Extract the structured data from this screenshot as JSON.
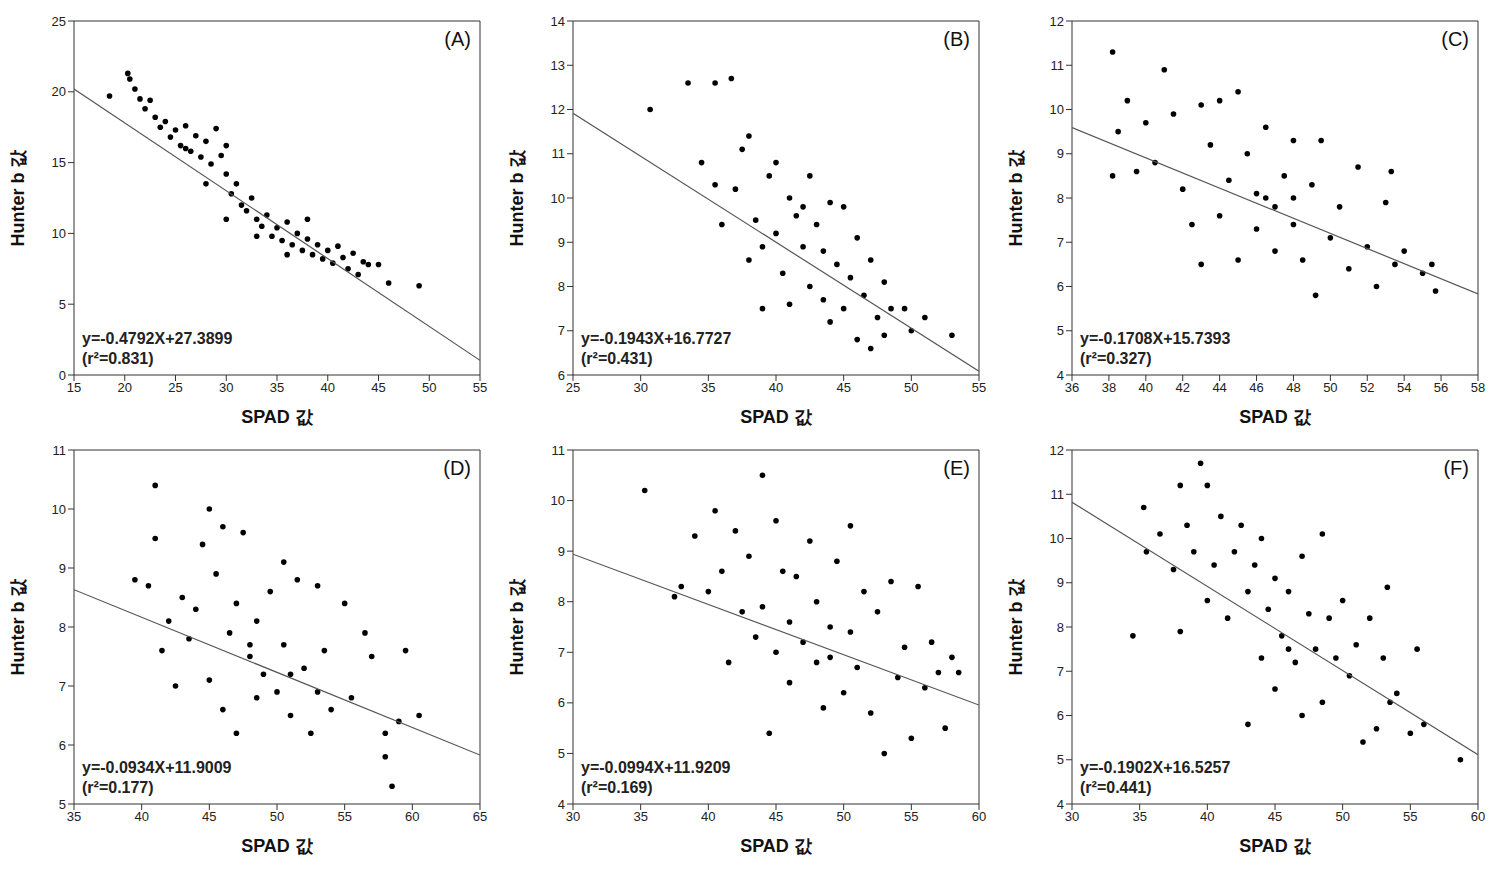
{
  "chart_data": [
    {
      "type": "scatter",
      "title": "(A)",
      "x_label": "SPAD 값",
      "y_label": "Hunter b 값",
      "annotations": [
        "y=-0.4792X+27.3899",
        "(r²=0.831)"
      ],
      "fit": {
        "slope": -0.4792,
        "intercept": 27.3899
      },
      "color": "#000000",
      "line_color": "#555555",
      "marker": "circle",
      "xlim": [
        15,
        55
      ],
      "xticks": [
        15,
        20,
        25,
        30,
        35,
        40,
        45,
        50,
        55
      ],
      "ylim": [
        0,
        25
      ],
      "yticks": [
        0,
        5,
        10,
        15,
        20,
        25
      ],
      "grid": false,
      "x": [
        18.5,
        20.3,
        20.5,
        21,
        21.5,
        22,
        22.5,
        23,
        23.5,
        24,
        24.5,
        25,
        25.5,
        26,
        26.5,
        27,
        27.5,
        28,
        28.5,
        29,
        29.5,
        30,
        30,
        30.5,
        31,
        31.5,
        32,
        32.5,
        33,
        33.5,
        34,
        34.5,
        35,
        35.5,
        36,
        36.5,
        37,
        37.5,
        38,
        38.5,
        39,
        39.5,
        40,
        40.5,
        41,
        41.5,
        42,
        42.5,
        43,
        43.5,
        44,
        45,
        46,
        49,
        26,
        28,
        33,
        36,
        38,
        30
      ],
      "values": [
        19.7,
        21.3,
        20.9,
        20.2,
        19.5,
        18.8,
        19.4,
        18.2,
        17.5,
        17.9,
        16.8,
        17.3,
        16.2,
        17.6,
        15.8,
        16.9,
        15.4,
        16.5,
        14.9,
        17.4,
        15.5,
        14.2,
        16.2,
        12.8,
        13.5,
        12,
        11.6,
        12.5,
        11,
        10.5,
        11.3,
        9.8,
        10.4,
        9.5,
        10.8,
        9.2,
        10,
        8.8,
        9.6,
        8.5,
        9.2,
        8.2,
        8.8,
        7.9,
        9.1,
        8.3,
        7.5,
        8.6,
        7.1,
        8,
        7.8,
        7.8,
        6.5,
        6.3,
        16,
        13.5,
        9.8,
        8.5,
        11,
        11
      ]
    },
    {
      "type": "scatter",
      "title": "(B)",
      "x_label": "SPAD 값",
      "y_label": "Hunter b 값",
      "annotations": [
        "y=-0.1943X+16.7727",
        "(r²=0.431)"
      ],
      "fit": {
        "slope": -0.1943,
        "intercept": 16.7727
      },
      "color": "#000000",
      "line_color": "#555555",
      "marker": "circle",
      "xlim": [
        25,
        55
      ],
      "xticks": [
        25,
        30,
        35,
        40,
        45,
        50,
        55
      ],
      "ylim": [
        6,
        14
      ],
      "yticks": [
        6,
        7,
        8,
        9,
        10,
        11,
        12,
        13,
        14
      ],
      "grid": false,
      "x": [
        30.7,
        33.5,
        35.5,
        36.7,
        34.5,
        35.5,
        36,
        37,
        37.5,
        38,
        38.5,
        38,
        39,
        39.5,
        40,
        40,
        40.5,
        41,
        41,
        41.5,
        42,
        42.5,
        42.5,
        43,
        43.5,
        43.5,
        44,
        44,
        44.5,
        45,
        45,
        45.5,
        46,
        46,
        46.5,
        47,
        47,
        47.5,
        48,
        48,
        48.5,
        49.5,
        50,
        51,
        53,
        39,
        42
      ],
      "values": [
        12,
        12.6,
        12.6,
        12.7,
        10.8,
        10.3,
        9.4,
        10.2,
        11.1,
        11.4,
        9.5,
        8.6,
        8.9,
        10.5,
        10.8,
        9.2,
        8.3,
        10,
        7.6,
        9.6,
        8.9,
        10.5,
        8,
        9.4,
        7.7,
        8.8,
        9.9,
        7.2,
        8.5,
        9.8,
        7.5,
        8.2,
        9.1,
        6.8,
        7.8,
        8.6,
        6.6,
        7.3,
        8.1,
        6.9,
        7.5,
        7.5,
        7,
        7.3,
        6.9,
        7.5,
        9.8
      ]
    },
    {
      "type": "scatter",
      "title": "(C)",
      "x_label": "SPAD 값",
      "y_label": "Hunter b 값",
      "annotations": [
        "y=-0.1708X+15.7393",
        "(r²=0.327)"
      ],
      "fit": {
        "slope": -0.1708,
        "intercept": 15.7393
      },
      "color": "#000000",
      "line_color": "#555555",
      "marker": "circle",
      "xlim": [
        36,
        58
      ],
      "xticks": [
        36,
        38,
        40,
        42,
        44,
        46,
        48,
        50,
        52,
        54,
        56,
        58
      ],
      "ylim": [
        4,
        12
      ],
      "yticks": [
        4,
        5,
        6,
        7,
        8,
        9,
        10,
        11,
        12
      ],
      "grid": false,
      "x": [
        38.2,
        38.2,
        38.5,
        39,
        39.5,
        40,
        40.5,
        41,
        41.5,
        42,
        42.5,
        43,
        43,
        43.5,
        44,
        44,
        44.5,
        45,
        45,
        45.5,
        46,
        46,
        46.5,
        47,
        47,
        47.5,
        48,
        48,
        48.5,
        49,
        49.2,
        49.5,
        50,
        50.5,
        51,
        51.5,
        52,
        52.5,
        53,
        53.3,
        53.5,
        54,
        55,
        55.5,
        55.7,
        46.5,
        48
      ],
      "values": [
        11.3,
        8.5,
        9.5,
        10.2,
        8.6,
        9.7,
        8.8,
        10.9,
        9.9,
        8.2,
        7.4,
        10.1,
        6.5,
        9.2,
        10.2,
        7.6,
        8.4,
        10.4,
        6.6,
        9,
        8.1,
        7.3,
        9.6,
        7.8,
        6.8,
        8.5,
        9.3,
        7.4,
        6.6,
        8.3,
        5.8,
        9.3,
        7.1,
        7.8,
        6.4,
        8.7,
        6.9,
        6,
        7.9,
        8.6,
        6.5,
        6.8,
        6.3,
        6.5,
        5.9,
        8,
        8
      ]
    },
    {
      "type": "scatter",
      "title": "(D)",
      "x_label": "SPAD 값",
      "y_label": "Hunter b 값",
      "annotations": [
        "y=-0.0934X+11.9009",
        "(r²=0.177)"
      ],
      "fit": {
        "slope": -0.0934,
        "intercept": 11.9009
      },
      "color": "#000000",
      "line_color": "#555555",
      "marker": "circle",
      "xlim": [
        35,
        65
      ],
      "xticks": [
        35,
        40,
        45,
        50,
        55,
        60,
        65
      ],
      "ylim": [
        5,
        11
      ],
      "yticks": [
        5,
        6,
        7,
        8,
        9,
        10,
        11
      ],
      "grid": false,
      "x": [
        39.5,
        40.5,
        41,
        41,
        41.5,
        42,
        42.5,
        43,
        43.5,
        44,
        44.5,
        45,
        45,
        45.5,
        46,
        46,
        46.5,
        47,
        47,
        47.5,
        48,
        48.5,
        48.5,
        49,
        49.5,
        50,
        50.5,
        50.5,
        51,
        51.5,
        52,
        52.5,
        53,
        53,
        53.5,
        54,
        55,
        55.5,
        56.5,
        57,
        58,
        58,
        58.5,
        59,
        59.5,
        60.5,
        48,
        51
      ],
      "values": [
        8.8,
        8.7,
        10.4,
        9.5,
        7.6,
        8.1,
        7,
        8.5,
        7.8,
        8.3,
        9.4,
        10,
        7.1,
        8.9,
        9.7,
        6.6,
        7.9,
        8.4,
        6.2,
        9.6,
        7.5,
        8.1,
        6.8,
        7.2,
        8.6,
        6.9,
        9.1,
        7.7,
        6.5,
        8.8,
        7.3,
        6.2,
        8.7,
        6.9,
        7.6,
        6.6,
        8.4,
        6.8,
        7.9,
        7.5,
        6.2,
        5.8,
        5.3,
        6.4,
        7.6,
        6.5,
        7.7,
        7.2
      ]
    },
    {
      "type": "scatter",
      "title": "(E)",
      "x_label": "SPAD 값",
      "y_label": "Hunter b 값",
      "annotations": [
        "y=-0.0994X+11.9209",
        "(r²=0.169)"
      ],
      "fit": {
        "slope": -0.0994,
        "intercept": 11.9209
      },
      "color": "#000000",
      "line_color": "#555555",
      "marker": "circle",
      "xlim": [
        30,
        60
      ],
      "xticks": [
        30,
        35,
        40,
        45,
        50,
        55,
        60
      ],
      "ylim": [
        4,
        11
      ],
      "yticks": [
        4,
        5,
        6,
        7,
        8,
        9,
        10,
        11
      ],
      "grid": false,
      "x": [
        35.3,
        37.5,
        38,
        39,
        40,
        40.5,
        41,
        41.5,
        42,
        42.5,
        43,
        43.5,
        44,
        44,
        44.5,
        45,
        45,
        45.5,
        46,
        46.5,
        47,
        47.5,
        48,
        48,
        48.5,
        49,
        49.5,
        50,
        50.5,
        50.5,
        51,
        51.5,
        52,
        52.5,
        53,
        53.5,
        54,
        54.5,
        55,
        55.5,
        56,
        56.5,
        57,
        57.5,
        58,
        58.5,
        46,
        49
      ],
      "values": [
        10.2,
        8.1,
        8.3,
        9.3,
        8.2,
        9.8,
        8.6,
        6.8,
        9.4,
        7.8,
        8.9,
        7.3,
        10.5,
        7.9,
        5.4,
        9.6,
        7,
        8.6,
        6.4,
        8.5,
        7.2,
        9.2,
        6.8,
        8,
        5.9,
        7.5,
        8.8,
        6.2,
        9.5,
        7.4,
        6.7,
        8.2,
        5.8,
        7.8,
        5,
        8.4,
        6.5,
        7.1,
        5.3,
        8.3,
        6.3,
        7.2,
        6.6,
        5.5,
        6.9,
        6.6,
        7.6,
        6.9
      ]
    },
    {
      "type": "scatter",
      "title": "(F)",
      "x_label": "SPAD 값",
      "y_label": "Hunter b 값",
      "annotations": [
        "y=-0.1902X+16.5257",
        "(r²=0.441)"
      ],
      "fit": {
        "slope": -0.1902,
        "intercept": 16.5257
      },
      "color": "#000000",
      "line_color": "#555555",
      "marker": "circle",
      "xlim": [
        30,
        60
      ],
      "xticks": [
        30,
        35,
        40,
        45,
        50,
        55,
        60
      ],
      "ylim": [
        4,
        12
      ],
      "yticks": [
        4,
        5,
        6,
        7,
        8,
        9,
        10,
        11,
        12
      ],
      "grid": false,
      "x": [
        34.5,
        35.3,
        35.5,
        36.5,
        37.5,
        38,
        38,
        38.5,
        39,
        39.5,
        40,
        40,
        40.5,
        41,
        41.5,
        42,
        42.5,
        43,
        43,
        43.5,
        44,
        44,
        44.5,
        45,
        45,
        45.5,
        46,
        46.5,
        47,
        47,
        47.5,
        48,
        48.5,
        48.5,
        49,
        49.5,
        50,
        50.5,
        51,
        51.5,
        52,
        52.5,
        53,
        53.3,
        53.5,
        54,
        55,
        55.5,
        56,
        58.7,
        46
      ],
      "values": [
        7.8,
        10.7,
        9.7,
        10.1,
        9.3,
        11.2,
        7.9,
        10.3,
        9.7,
        11.7,
        11.2,
        8.6,
        9.4,
        10.5,
        8.2,
        9.7,
        10.3,
        8.8,
        5.8,
        9.4,
        7.3,
        10,
        8.4,
        9.1,
        6.6,
        7.8,
        8.8,
        7.2,
        9.6,
        6,
        8.3,
        7.5,
        10.1,
        6.3,
        8.2,
        7.3,
        8.6,
        6.9,
        7.6,
        5.4,
        8.2,
        5.7,
        7.3,
        8.9,
        6.3,
        6.5,
        5.6,
        7.5,
        5.8,
        5,
        7.5
      ]
    }
  ]
}
